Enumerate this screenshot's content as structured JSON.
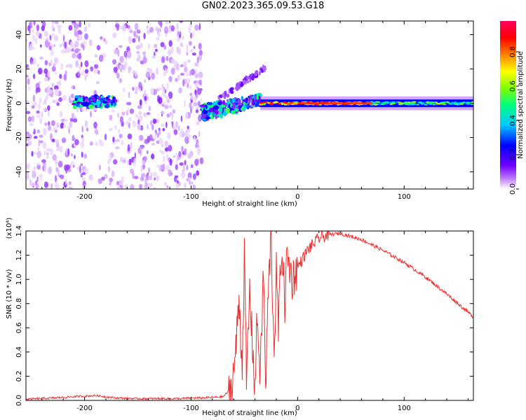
{
  "title": "GN02.2023.365.09.53.G18",
  "chart_data": [
    {
      "type": "heatmap",
      "name": "spectrogram",
      "xlabel": "Height of straight line (km)",
      "ylabel": "Frequency (Hz)",
      "xlim": [
        -255,
        165
      ],
      "ylim": [
        -50,
        48
      ],
      "xticks": [
        -200,
        -100,
        0,
        100
      ],
      "yticks": [
        -40,
        -20,
        0,
        20,
        40
      ],
      "colorbar": {
        "label": "Normalized spectral amplitude",
        "range": [
          0.0,
          0.98
        ],
        "ticks": [
          "0.0",
          "0.2",
          "0.4",
          "0.6",
          "0.8"
        ],
        "colormap": [
          "#ffffff",
          "#c080ff",
          "#7000ff",
          "#0000ff",
          "#00c8ff",
          "#00ff80",
          "#80ff00",
          "#ffff00",
          "#ff8000",
          "#ff0000",
          "#ff0060"
        ]
      },
      "regions": [
        {
          "x": [
            -255,
            -90
          ],
          "description": "scattered noise",
          "amplitude": 0.05
        },
        {
          "x": [
            -210,
            -170
          ],
          "y_center": 1,
          "amplitude": 0.35
        },
        {
          "x": [
            -90,
            -35
          ],
          "y_center": 0,
          "amplitude": 0.4
        },
        {
          "x": [
            -35,
            165
          ],
          "y_center": 0,
          "amplitude": 0.65
        }
      ]
    },
    {
      "type": "line",
      "name": "snr",
      "xlabel": "Height of straight line (km)",
      "ylabel": "SNR (10 * v/v)",
      "y_multiplier": "(x10⁴)",
      "xlim": [
        -255,
        165
      ],
      "ylim": [
        0.0,
        1.4
      ],
      "xticks": [
        -200,
        -100,
        0,
        100
      ],
      "yticks": [
        "0.0",
        "0.2",
        "0.4",
        "0.6",
        "0.8",
        "1.0",
        "1.2",
        "1.4"
      ],
      "color": "#ee3030",
      "series": [
        {
          "x": [
            -255,
            -230,
            -210,
            -190,
            -180,
            -170,
            -150,
            -130,
            -110,
            -100,
            -90,
            -70,
            -62,
            -58,
            -55,
            -52,
            -50,
            -48,
            -45,
            -42,
            -40,
            -38,
            -35,
            -32,
            -30,
            -28,
            -25,
            -22,
            -20,
            -18,
            -15,
            -12,
            -10,
            -5,
            0,
            10,
            20,
            30,
            40,
            60,
            80,
            100,
            120,
            140,
            165
          ],
          "y": [
            0.01,
            0.02,
            0.03,
            0.04,
            0.03,
            0.02,
            0.015,
            0.015,
            0.015,
            0.02,
            0.02,
            0.03,
            0.1,
            0.4,
            0.85,
            0.3,
            1.2,
            0.15,
            0.9,
            0.4,
            0.1,
            0.7,
            0.2,
            1.1,
            0.05,
            0.8,
            1.35,
            0.4,
            1.05,
            0.6,
            1.3,
            0.8,
            1.2,
            1.0,
            1.1,
            1.25,
            1.34,
            1.37,
            1.38,
            1.33,
            1.24,
            1.14,
            1.02,
            0.88,
            0.69
          ]
        }
      ]
    }
  ]
}
